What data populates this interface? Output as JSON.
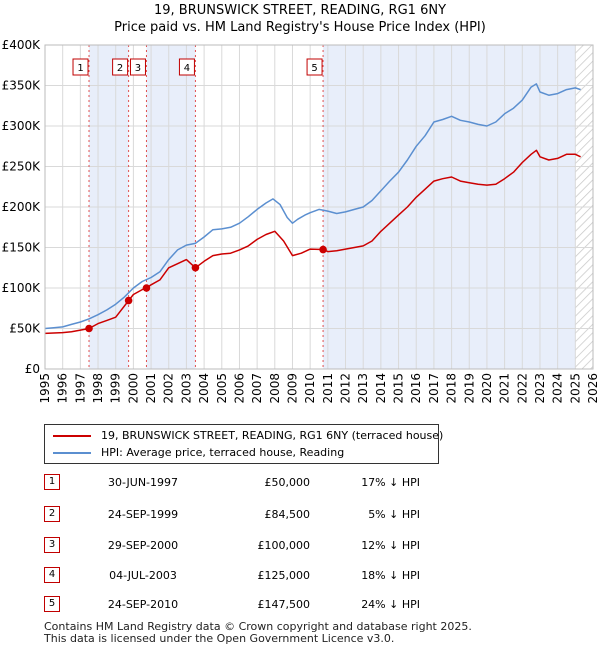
{
  "title_line1": "19, BRUNSWICK STREET, READING, RG1 6NY",
  "title_line2": "Price paid vs. HM Land Registry's House Price Index (HPI)",
  "legend": {
    "red_label": "19, BRUNSWICK STREET, READING, RG1 6NY (terraced house)",
    "blue_label": "HPI: Average price, terraced house, Reading"
  },
  "colors": {
    "property": "#cc0000",
    "hpi": "#5b8fd0",
    "shade": "#e8eefa",
    "sale_line": "#e05050"
  },
  "sales": [
    {
      "num": "1",
      "date": "30-JUN-1997",
      "price": "£50,000",
      "hpi": "17% ↓ HPI",
      "year": 1997.49,
      "value": 50000
    },
    {
      "num": "2",
      "date": "24-SEP-1999",
      "price": "£84,500",
      "hpi": "5% ↓ HPI",
      "year": 1999.73,
      "value": 84500
    },
    {
      "num": "3",
      "date": "29-SEP-2000",
      "price": "£100,000",
      "hpi": "12% ↓ HPI",
      "year": 2000.74,
      "value": 100000
    },
    {
      "num": "4",
      "date": "04-JUL-2003",
      "price": "£125,000",
      "hpi": "18% ↓ HPI",
      "year": 2003.51,
      "value": 125000
    },
    {
      "num": "5",
      "date": "24-SEP-2010",
      "price": "£147,500",
      "hpi": "24% ↓ HPI",
      "year": 2010.73,
      "value": 147500
    }
  ],
  "footer": {
    "line1": "Contains HM Land Registry data © Crown copyright and database right 2025.",
    "line2": "This data is licensed under the Open Government Licence v3.0."
  },
  "chart_data": {
    "type": "line",
    "xlabel": "",
    "ylabel": "",
    "xlim": [
      1995,
      2026
    ],
    "ylim": [
      0,
      400000
    ],
    "y_ticks": [
      0,
      50000,
      100000,
      150000,
      200000,
      250000,
      300000,
      350000,
      400000
    ],
    "y_tick_labels": [
      "£0",
      "£50K",
      "£100K",
      "£150K",
      "£200K",
      "£250K",
      "£300K",
      "£350K",
      "£400K"
    ],
    "x_ticks": [
      1995,
      1996,
      1997,
      1998,
      1999,
      2000,
      2001,
      2002,
      2003,
      2004,
      2005,
      2006,
      2007,
      2008,
      2009,
      2010,
      2011,
      2012,
      2013,
      2014,
      2015,
      2016,
      2017,
      2018,
      2019,
      2020,
      2021,
      2022,
      2023,
      2024,
      2025,
      2026
    ],
    "shaded_regions": [
      [
        1997.49,
        1999.73
      ],
      [
        2000.74,
        2003.51
      ],
      [
        2010.73,
        2025.0
      ]
    ],
    "hatched_after": 2025.0,
    "grid": true,
    "series": [
      {
        "name": "HPI: Average price, terraced house, Reading",
        "color": "#5b8fd0",
        "x": [
          1995,
          1995.5,
          1996,
          1996.5,
          1997,
          1997.5,
          1998,
          1998.5,
          1999,
          1999.5,
          2000,
          2000.5,
          2001,
          2001.5,
          2002,
          2002.5,
          2003,
          2003.5,
          2004,
          2004.5,
          2005,
          2005.5,
          2006,
          2006.5,
          2007,
          2007.5,
          2007.9,
          2008.3,
          2008.7,
          2009,
          2009.3,
          2009.7,
          2010,
          2010.5,
          2011,
          2011.5,
          2012,
          2012.5,
          2013,
          2013.5,
          2014,
          2014.5,
          2015,
          2015.5,
          2016,
          2016.5,
          2017,
          2017.5,
          2018,
          2018.5,
          2019,
          2019.5,
          2020,
          2020.5,
          2021,
          2021.5,
          2022,
          2022.5,
          2022.8,
          2023,
          2023.5,
          2024,
          2024.5,
          2025,
          2025.3
        ],
        "y": [
          50000,
          51000,
          52000,
          55000,
          58000,
          62000,
          67000,
          73000,
          80000,
          89000,
          100000,
          108000,
          113000,
          120000,
          135000,
          147000,
          153000,
          155000,
          163000,
          172000,
          173000,
          175000,
          180000,
          188000,
          197000,
          205000,
          210000,
          203000,
          187000,
          180000,
          185000,
          190000,
          193000,
          197000,
          195000,
          192000,
          194000,
          197000,
          200000,
          208000,
          220000,
          232000,
          243000,
          258000,
          275000,
          288000,
          305000,
          308000,
          312000,
          307000,
          305000,
          302000,
          300000,
          305000,
          315000,
          322000,
          332000,
          348000,
          352000,
          342000,
          338000,
          340000,
          345000,
          347000,
          345000
        ]
      },
      {
        "name": "19, BRUNSWICK STREET, READING, RG1 6NY (terraced house)",
        "color": "#cc0000",
        "x": [
          1995,
          1995.5,
          1996,
          1996.5,
          1997,
          1997.49,
          1998,
          1998.5,
          1999,
          1999.73,
          2000,
          2000.5,
          2000.74,
          2001,
          2001.5,
          2002,
          2002.5,
          2003,
          2003.51,
          2004,
          2004.5,
          2005,
          2005.5,
          2006,
          2006.5,
          2007,
          2007.5,
          2008,
          2008.5,
          2009,
          2009.5,
          2010,
          2010.73,
          2011,
          2011.5,
          2012,
          2012.5,
          2013,
          2013.5,
          2014,
          2014.5,
          2015,
          2015.5,
          2016,
          2016.5,
          2017,
          2017.5,
          2018,
          2018.5,
          2019,
          2019.5,
          2020,
          2020.5,
          2021,
          2021.5,
          2022,
          2022.5,
          2022.8,
          2023,
          2023.5,
          2024,
          2024.5,
          2025,
          2025.3
        ],
        "y": [
          44000,
          44500,
          45000,
          46000,
          48000,
          50000,
          56000,
          60000,
          64000,
          84500,
          92000,
          98000,
          100000,
          104000,
          110000,
          125000,
          130000,
          135000,
          125000,
          133000,
          140000,
          142000,
          143000,
          147000,
          152000,
          160000,
          166000,
          170000,
          158000,
          140000,
          143000,
          148000,
          147500,
          145000,
          146000,
          148000,
          150000,
          152000,
          158000,
          170000,
          180000,
          190000,
          200000,
          212000,
          222000,
          232000,
          235000,
          237000,
          232000,
          230000,
          228000,
          227000,
          228000,
          235000,
          243000,
          255000,
          265000,
          270000,
          262000,
          258000,
          260000,
          265000,
          265000,
          262000
        ]
      }
    ]
  }
}
